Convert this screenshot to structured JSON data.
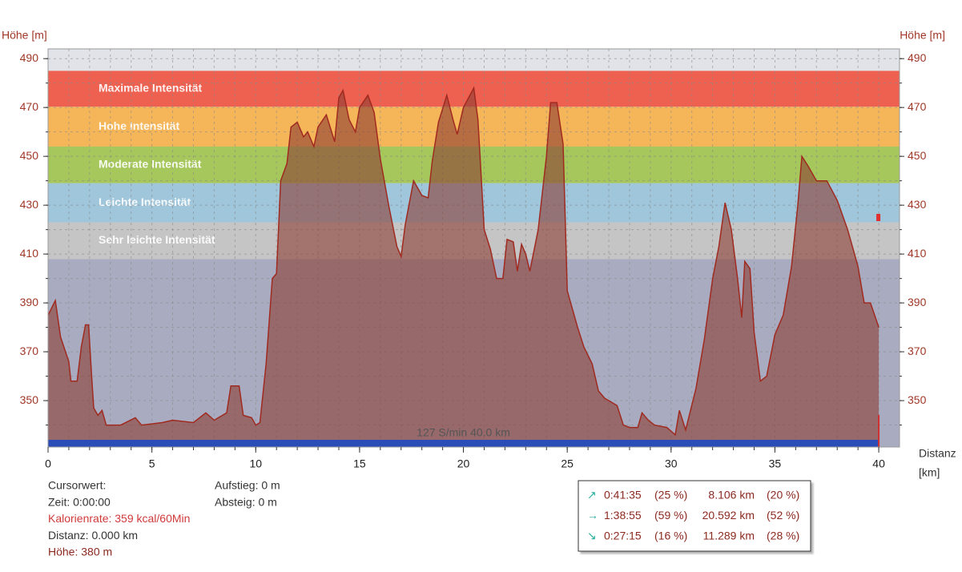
{
  "chart_data": {
    "type": "area",
    "y_label": "Höhe [m]",
    "x_label_lines": [
      "Distanz",
      "[km]"
    ],
    "xlim": [
      0,
      41
    ],
    "xticks": [
      0,
      5,
      10,
      15,
      20,
      25,
      30,
      35,
      40
    ],
    "ylim": [
      331,
      494
    ],
    "yticks": [
      350,
      370,
      390,
      410,
      430,
      450,
      470,
      490
    ],
    "xgrid": [
      1,
      2,
      3,
      4,
      5,
      6,
      7,
      8,
      9,
      10,
      11,
      12,
      13,
      14,
      15,
      16,
      17,
      18,
      19,
      20,
      21,
      22,
      23,
      24,
      25,
      26,
      27,
      28,
      29,
      30,
      31,
      32,
      33,
      34,
      35,
      36,
      37,
      38,
      39,
      40
    ],
    "ygrid": [
      340,
      350,
      360,
      370,
      380,
      390,
      400,
      410,
      420,
      430,
      440,
      450,
      460,
      470,
      480,
      490
    ],
    "color": "#8c3c32",
    "line_color": "#a02a20",
    "bands": [
      {
        "name": "Maximale Intensität",
        "from": 470.3,
        "to": 485,
        "color": "#ee6150"
      },
      {
        "name": "Hohe Intensität",
        "from": 454,
        "to": 470.3,
        "color": "#f5b65a"
      },
      {
        "name": "Moderate Intensität",
        "from": 439,
        "to": 454,
        "color": "#a6c75c"
      },
      {
        "name": "Leichte Intensität",
        "from": 423,
        "to": 439,
        "color": "#9fc6da"
      },
      {
        "name": "Sehr leichte Intensität",
        "from": 408,
        "to": 423,
        "color": "#c5c5c5"
      }
    ],
    "cursor_label": "127 S/min 40.0 km",
    "x": [
      0,
      0.35,
      0.6,
      1,
      1.1,
      1.4,
      1.6,
      1.8,
      1.95,
      2.1,
      2.2,
      2.4,
      2.6,
      2.8,
      3.5,
      4.2,
      4.5,
      5.5,
      6,
      7,
      7.6,
      8,
      8.6,
      8.8,
      9.2,
      9.4,
      9.8,
      10,
      10.2,
      10.5,
      10.8,
      11,
      11.2,
      11.5,
      11.7,
      12,
      12.3,
      12.5,
      12.8,
      13,
      13.4,
      13.8,
      14,
      14.2,
      14.5,
      14.8,
      15,
      15.4,
      15.7,
      16,
      16.4,
      16.8,
      17,
      17.2,
      17.6,
      18,
      18.3,
      18.5,
      18.8,
      19.2,
      19.5,
      19.7,
      20,
      20.5,
      20.7,
      21,
      21.3,
      21.6,
      21.9,
      22.1,
      22.4,
      22.6,
      22.8,
      23,
      23.2,
      23.6,
      24,
      24.2,
      24.5,
      24.8,
      25,
      25.5,
      25.8,
      26.2,
      26.5,
      26.8,
      27,
      27.4,
      27.7,
      28,
      28.4,
      28.6,
      28.9,
      29.2,
      29.8,
      30.2,
      30.4,
      30.7,
      31.2,
      31.6,
      32,
      32.3,
      32.6,
      32.9,
      33.2,
      33.4,
      33.55,
      33.8,
      34,
      34.3,
      34.6,
      35,
      35.4,
      35.8,
      36.1,
      36.3,
      36.6,
      37,
      37.5,
      38,
      38.5,
      39,
      39.3,
      39.6,
      40
    ],
    "values": [
      385,
      391,
      376,
      366,
      358,
      358,
      372,
      381,
      381,
      360,
      347,
      344,
      346,
      340,
      340,
      343,
      340,
      341,
      342,
      341,
      345,
      342,
      345,
      356,
      356,
      344,
      343,
      340,
      341,
      365,
      400,
      402,
      440,
      447,
      462,
      464,
      458,
      460,
      454,
      462,
      467,
      456,
      474,
      477,
      465,
      460,
      470,
      475,
      468,
      449,
      430,
      413,
      409,
      422,
      440,
      434,
      433,
      448,
      464,
      475,
      465,
      459,
      470,
      478,
      465,
      420,
      412,
      400,
      400,
      416,
      415,
      403,
      414,
      410,
      403,
      420,
      450,
      472,
      472,
      455,
      395,
      380,
      372,
      365,
      354,
      351,
      350,
      348,
      340,
      339,
      339,
      345,
      342,
      340,
      339,
      336,
      346,
      338,
      355,
      375,
      400,
      413,
      431,
      420,
      400,
      384,
      407,
      404,
      378,
      358,
      360,
      377,
      385,
      405,
      430,
      450,
      446,
      440,
      440,
      432,
      420,
      405,
      390,
      390,
      380
    ]
  },
  "info_left": [
    "Cursorwert:",
    "Zeit: 0:00:00",
    "Kalorienrate: 359 kcal/60Min",
    "Distanz: 0.000 km",
    "Höhe:  380 m"
  ],
  "info_right": [
    "Aufstieg: 0 m",
    "Absteig: 0 m"
  ],
  "stats": [
    [
      "↗",
      "0:41:35",
      "(25 %)",
      "8.106 km",
      "(20 %)"
    ],
    [
      "→",
      "1:38:55",
      "(59 %)",
      "20.592 km",
      "(52 %)"
    ],
    [
      "↘",
      "0:27:15",
      "(16 %)",
      "11.289 km",
      "(28 %)"
    ]
  ]
}
